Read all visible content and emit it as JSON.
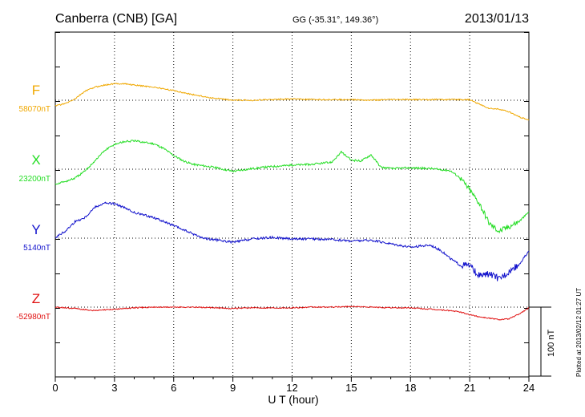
{
  "header": {
    "station": "Canberra (CNB)  [GA]",
    "coords": "GG (-35.31°, 149.36°)",
    "date": "2013/01/13"
  },
  "side_note": "Plotted at 2013/02/12 01:27 UT",
  "colors": {
    "F": "#f0a800",
    "X": "#22dd22",
    "Y": "#1111cc",
    "Z": "#e01010",
    "axis": "#000000"
  },
  "chart_data": {
    "type": "line",
    "title": "Canberra (CNB)  [GA]",
    "xlabel": "U T (hour)",
    "xlim": [
      0,
      24
    ],
    "xticks": [
      0,
      3,
      6,
      9,
      12,
      15,
      18,
      21,
      24
    ],
    "grid": true,
    "scale_bar": "100 nT",
    "series": [
      {
        "name": "F",
        "baseline_label": "58070nT",
        "baseline": 58070,
        "hours": [
          0,
          0.5,
          1,
          1.5,
          2,
          2.5,
          3,
          3.5,
          4,
          5,
          6,
          7,
          8,
          9,
          10,
          11,
          12,
          13,
          14,
          15,
          16,
          17,
          18,
          19,
          20,
          20.5,
          21,
          21.5,
          22,
          22.5,
          23,
          23.5,
          24
        ],
        "values": [
          58062,
          58065,
          58072,
          58083,
          58089,
          58092,
          58094,
          58094,
          58092,
          58089,
          58084,
          58078,
          58073,
          58070,
          58070,
          58071,
          58072,
          58071,
          58071,
          58071,
          58070,
          58071,
          58071,
          58071,
          58071,
          58071,
          58071,
          58064,
          58058,
          58057,
          58053,
          58046,
          58041
        ]
      },
      {
        "name": "X",
        "baseline_label": "23200nT",
        "baseline": 23200,
        "hours": [
          0,
          0.5,
          1,
          1.5,
          2,
          2.5,
          3,
          3.5,
          4,
          4.5,
          5,
          5.5,
          6,
          6.5,
          7,
          8,
          9,
          10,
          11,
          12,
          13,
          14,
          14.5,
          15,
          15.5,
          16,
          16.5,
          17,
          18,
          19,
          20,
          20.5,
          21,
          21.5,
          22,
          22.5,
          23,
          23.5,
          24
        ],
        "values": [
          23179,
          23182,
          23187,
          23197,
          23212,
          23227,
          23236,
          23240,
          23241,
          23239,
          23237,
          23230,
          23220,
          23212,
          23207,
          23203,
          23197,
          23201,
          23204,
          23206,
          23207,
          23210,
          23225,
          23213,
          23212,
          23221,
          23203,
          23201,
          23202,
          23201,
          23198,
          23188,
          23170,
          23150,
          23121,
          23110,
          23117,
          23124,
          23138
        ]
      },
      {
        "name": "Y",
        "baseline_label": "5140nT",
        "baseline": 5140,
        "hours": [
          0,
          0.5,
          1,
          1.5,
          2,
          2.5,
          3,
          3.5,
          4,
          5,
          6,
          6.5,
          7,
          7.5,
          8,
          8.5,
          9,
          10,
          11,
          12,
          13,
          14,
          15,
          16,
          17,
          18,
          19,
          19.5,
          20,
          20.5,
          21,
          21.5,
          22,
          22.5,
          23,
          23.5,
          24
        ],
        "values": [
          5141,
          5150,
          5164,
          5170,
          5185,
          5191,
          5190,
          5184,
          5177,
          5170,
          5158,
          5152,
          5146,
          5140,
          5138,
          5136,
          5134,
          5139,
          5141,
          5139,
          5139,
          5138,
          5136,
          5137,
          5132,
          5127,
          5130,
          5123,
          5111,
          5101,
          5100,
          5085,
          5088,
          5081,
          5092,
          5102,
          5121
        ]
      },
      {
        "name": "Z",
        "baseline_label": "-52980nT",
        "baseline": -52980,
        "hours": [
          0,
          1,
          2,
          3,
          4,
          5,
          6,
          7,
          8,
          9,
          10,
          11,
          12,
          13,
          14,
          15,
          16,
          17,
          18,
          19,
          20,
          20.5,
          21,
          21.5,
          22,
          22.5,
          23,
          23.5,
          24
        ],
        "values": [
          -52980,
          -52982,
          -52985,
          -52983,
          -52981,
          -52980,
          -52980,
          -52980,
          -52981,
          -52982,
          -52981,
          -52981,
          -52981,
          -52980,
          -52980,
          -52979,
          -52980,
          -52981,
          -52981,
          -52983,
          -52985,
          -52987,
          -52991,
          -52994,
          -52996,
          -52998,
          -52997,
          -52990,
          -52981
        ]
      }
    ]
  }
}
